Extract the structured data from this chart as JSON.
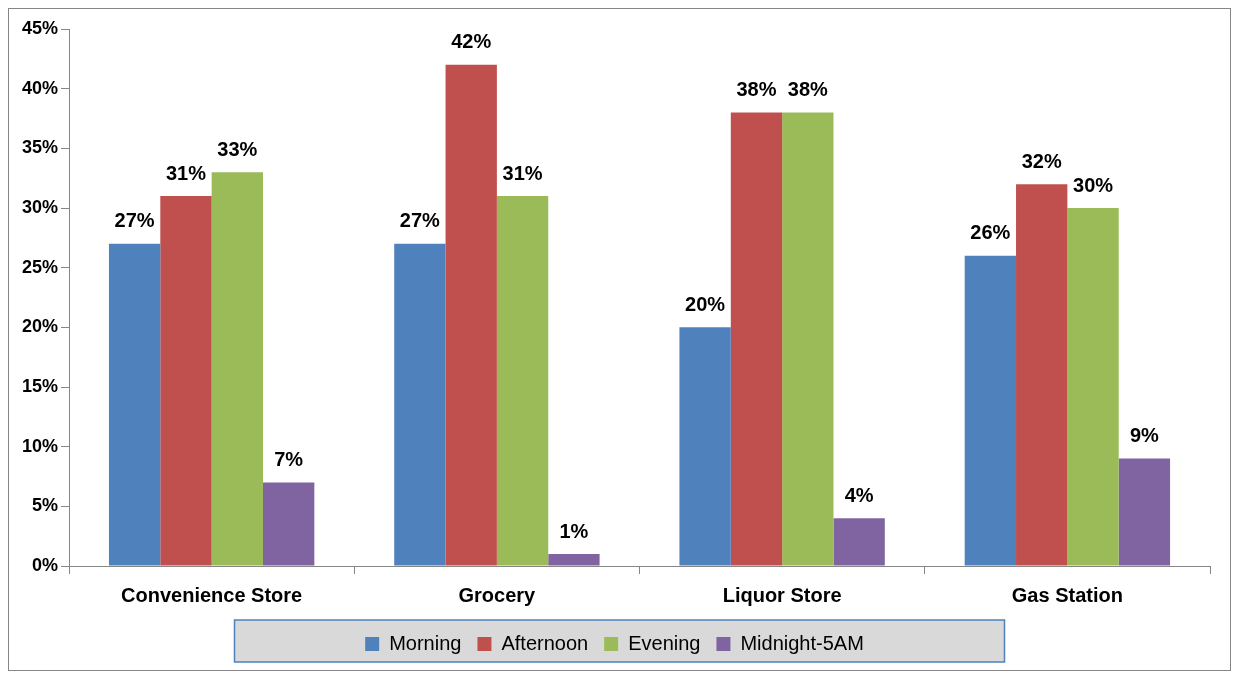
{
  "chart_data": {
    "type": "bar",
    "categories": [
      "Convenience Store",
      "Grocery",
      "Liquor Store",
      "Gas Station"
    ],
    "series": [
      {
        "name": "Morning",
        "color": "#4f81bd",
        "values": [
          27,
          27,
          20,
          26
        ],
        "value_labels": [
          "27%",
          "27%",
          "20%",
          "26%"
        ]
      },
      {
        "name": "Afternoon",
        "color": "#c0504d",
        "values": [
          31,
          42,
          38,
          32
        ],
        "value_labels": [
          "31%",
          "42%",
          "38%",
          "32%"
        ]
      },
      {
        "name": "Evening",
        "color": "#9bbb59",
        "values": [
          33,
          31,
          38,
          30
        ],
        "value_labels": [
          "33%",
          "31%",
          "38%",
          "30%"
        ]
      },
      {
        "name": "Midnight-5AM",
        "color": "#8064a2",
        "values": [
          7,
          1,
          4,
          9
        ],
        "value_labels": [
          "7%",
          "1%",
          "4%",
          "9%"
        ]
      }
    ],
    "ylim": [
      0,
      45
    ],
    "yticks": [
      {
        "value": 0,
        "label": "0%"
      },
      {
        "value": 5,
        "label": "5%"
      },
      {
        "value": 10,
        "label": "10%"
      },
      {
        "value": 15,
        "label": "15%"
      },
      {
        "value": 20,
        "label": "20%"
      },
      {
        "value": 25,
        "label": "25%"
      },
      {
        "value": 30,
        "label": "30%"
      },
      {
        "value": 35,
        "label": "35%"
      },
      {
        "value": 40,
        "label": "40%"
      },
      {
        "value": 45,
        "label": "45%"
      }
    ],
    "grid": false,
    "legend": "bottom"
  }
}
